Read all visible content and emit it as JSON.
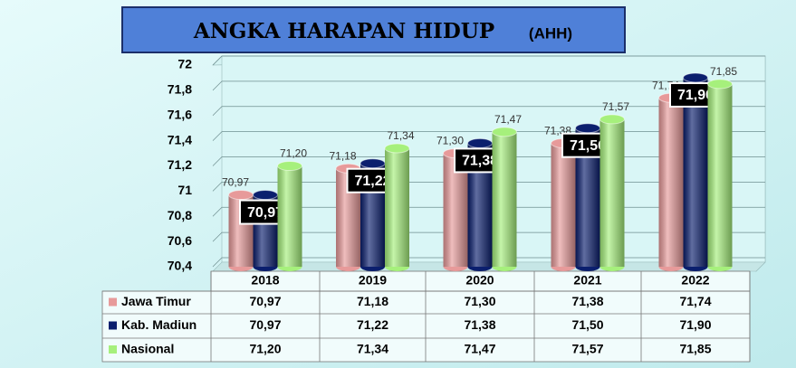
{
  "chart_data": {
    "type": "bar3d",
    "title": "ANGKA HARAPAN HIDUP",
    "subtitle": "(AHH)",
    "categories": [
      "2018",
      "2019",
      "2020",
      "2021",
      "2022"
    ],
    "series": [
      {
        "name": "Jawa Timur",
        "color": "#e79a9a",
        "values": [
          70.97,
          71.18,
          71.3,
          71.38,
          71.74
        ],
        "value_labels": [
          "70,97",
          "71,18",
          "71,30",
          "71,38",
          "71,74"
        ]
      },
      {
        "name": "Kab. Madiun",
        "color": "#0b1f6e",
        "values": [
          70.97,
          71.22,
          71.38,
          71.5,
          71.9
        ],
        "value_labels": [
          "70,97",
          "71,22",
          "71,38",
          "71,50",
          "71,90"
        ]
      },
      {
        "name": "Nasional",
        "color": "#a6f07c",
        "values": [
          71.2,
          71.34,
          71.47,
          71.57,
          71.85
        ],
        "value_labels": [
          "71,20",
          "71,34",
          "71,47",
          "71,57",
          "71,85"
        ]
      }
    ],
    "ylim": [
      70.4,
      72
    ],
    "yticks": [
      {
        "value": 70.4,
        "label": "70,4"
      },
      {
        "value": 70.6,
        "label": "70,6"
      },
      {
        "value": 70.8,
        "label": "70,8"
      },
      71,
      {
        "value": 71.2,
        "label": "71,2"
      },
      {
        "value": 71.4,
        "label": "71,4"
      },
      {
        "value": 71.6,
        "label": "71,6"
      },
      {
        "value": 71.8,
        "label": "71,8"
      },
      72
    ],
    "grid": true
  }
}
